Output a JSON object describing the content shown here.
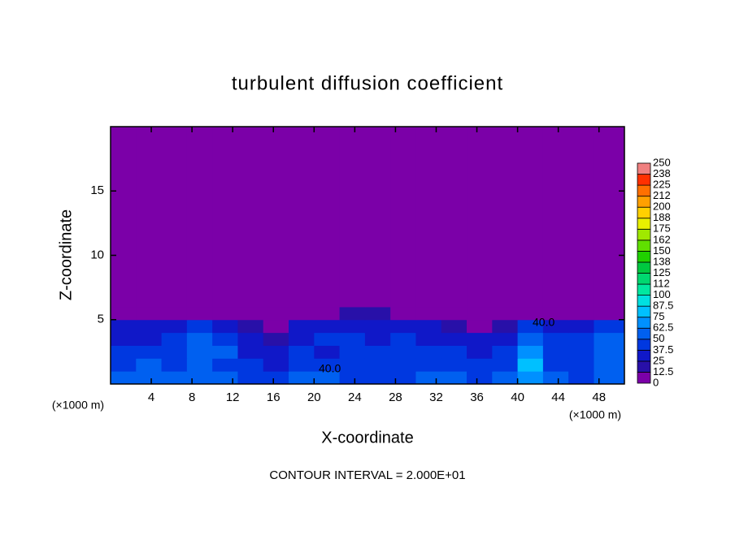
{
  "chart_data": {
    "type": "contour",
    "title": "turbulent diffusion coefficient",
    "x_label": "X-coordinate",
    "y_label": "Z-coordinate",
    "x_unit_label": "(×1000 m)",
    "y_unit_label": "(×1000 m)",
    "footer": "CONTOUR INTERVAL = 2.000E+01",
    "annotations": [
      "40.0",
      "40.0"
    ],
    "xlim": [
      0,
      50.5
    ],
    "ylim": [
      0,
      20
    ],
    "xticks": [
      4,
      8,
      12,
      16,
      20,
      24,
      28,
      32,
      36,
      40,
      44,
      48
    ],
    "yticks": [
      5,
      10,
      15
    ],
    "x_edges": [
      0,
      2.5,
      5,
      7.5,
      10,
      12.5,
      15,
      17.5,
      20,
      22.5,
      25,
      27.5,
      30,
      32.5,
      35,
      37.5,
      40,
      42.5,
      45,
      47.5,
      50.5
    ],
    "z_edges": [
      0,
      1,
      2,
      3,
      4,
      5,
      6,
      20
    ],
    "values": [
      [
        50,
        55,
        60,
        55,
        50,
        45,
        40,
        55,
        60,
        45,
        45,
        40,
        55,
        60,
        45,
        50,
        70,
        55,
        45,
        50
      ],
      [
        45,
        50,
        45,
        55,
        45,
        40,
        35,
        45,
        40,
        40,
        40,
        40,
        45,
        40,
        40,
        45,
        75,
        45,
        40,
        55
      ],
      [
        40,
        40,
        45,
        60,
        50,
        35,
        30,
        40,
        35,
        40,
        40,
        40,
        40,
        40,
        35,
        40,
        65,
        45,
        45,
        60
      ],
      [
        35,
        35,
        40,
        55,
        45,
        30,
        20,
        35,
        40,
        40,
        35,
        40,
        35,
        30,
        30,
        35,
        55,
        40,
        40,
        55
      ],
      [
        30,
        25,
        30,
        45,
        35,
        20,
        10,
        30,
        35,
        35,
        30,
        35,
        25,
        15,
        10,
        20,
        40,
        30,
        35,
        45
      ],
      [
        5,
        0,
        5,
        10,
        5,
        0,
        0,
        0,
        10,
        15,
        15,
        10,
        5,
        0,
        0,
        0,
        10,
        5,
        5,
        10
      ],
      [
        0,
        0,
        0,
        0,
        0,
        0,
        0,
        0,
        0,
        0,
        0,
        0,
        0,
        0,
        0,
        0,
        0,
        0,
        0,
        0
      ]
    ],
    "colorbar": {
      "levels": [
        0,
        12.5,
        25,
        37.5,
        50,
        62.5,
        75,
        87.5,
        100,
        112,
        125,
        138,
        150,
        162,
        175,
        188,
        200,
        212,
        225,
        238,
        250
      ],
      "colors": [
        "#7b00a8",
        "#2810a8",
        "#1018c8",
        "#0038e0",
        "#0060f0",
        "#0090ff",
        "#00c0ff",
        "#00e0e0",
        "#00e8a0",
        "#00d870",
        "#00c840",
        "#20d000",
        "#60e000",
        "#a0e800",
        "#e8f000",
        "#ffd000",
        "#ffa000",
        "#ff7000",
        "#ff3000",
        "#f08080"
      ]
    }
  }
}
